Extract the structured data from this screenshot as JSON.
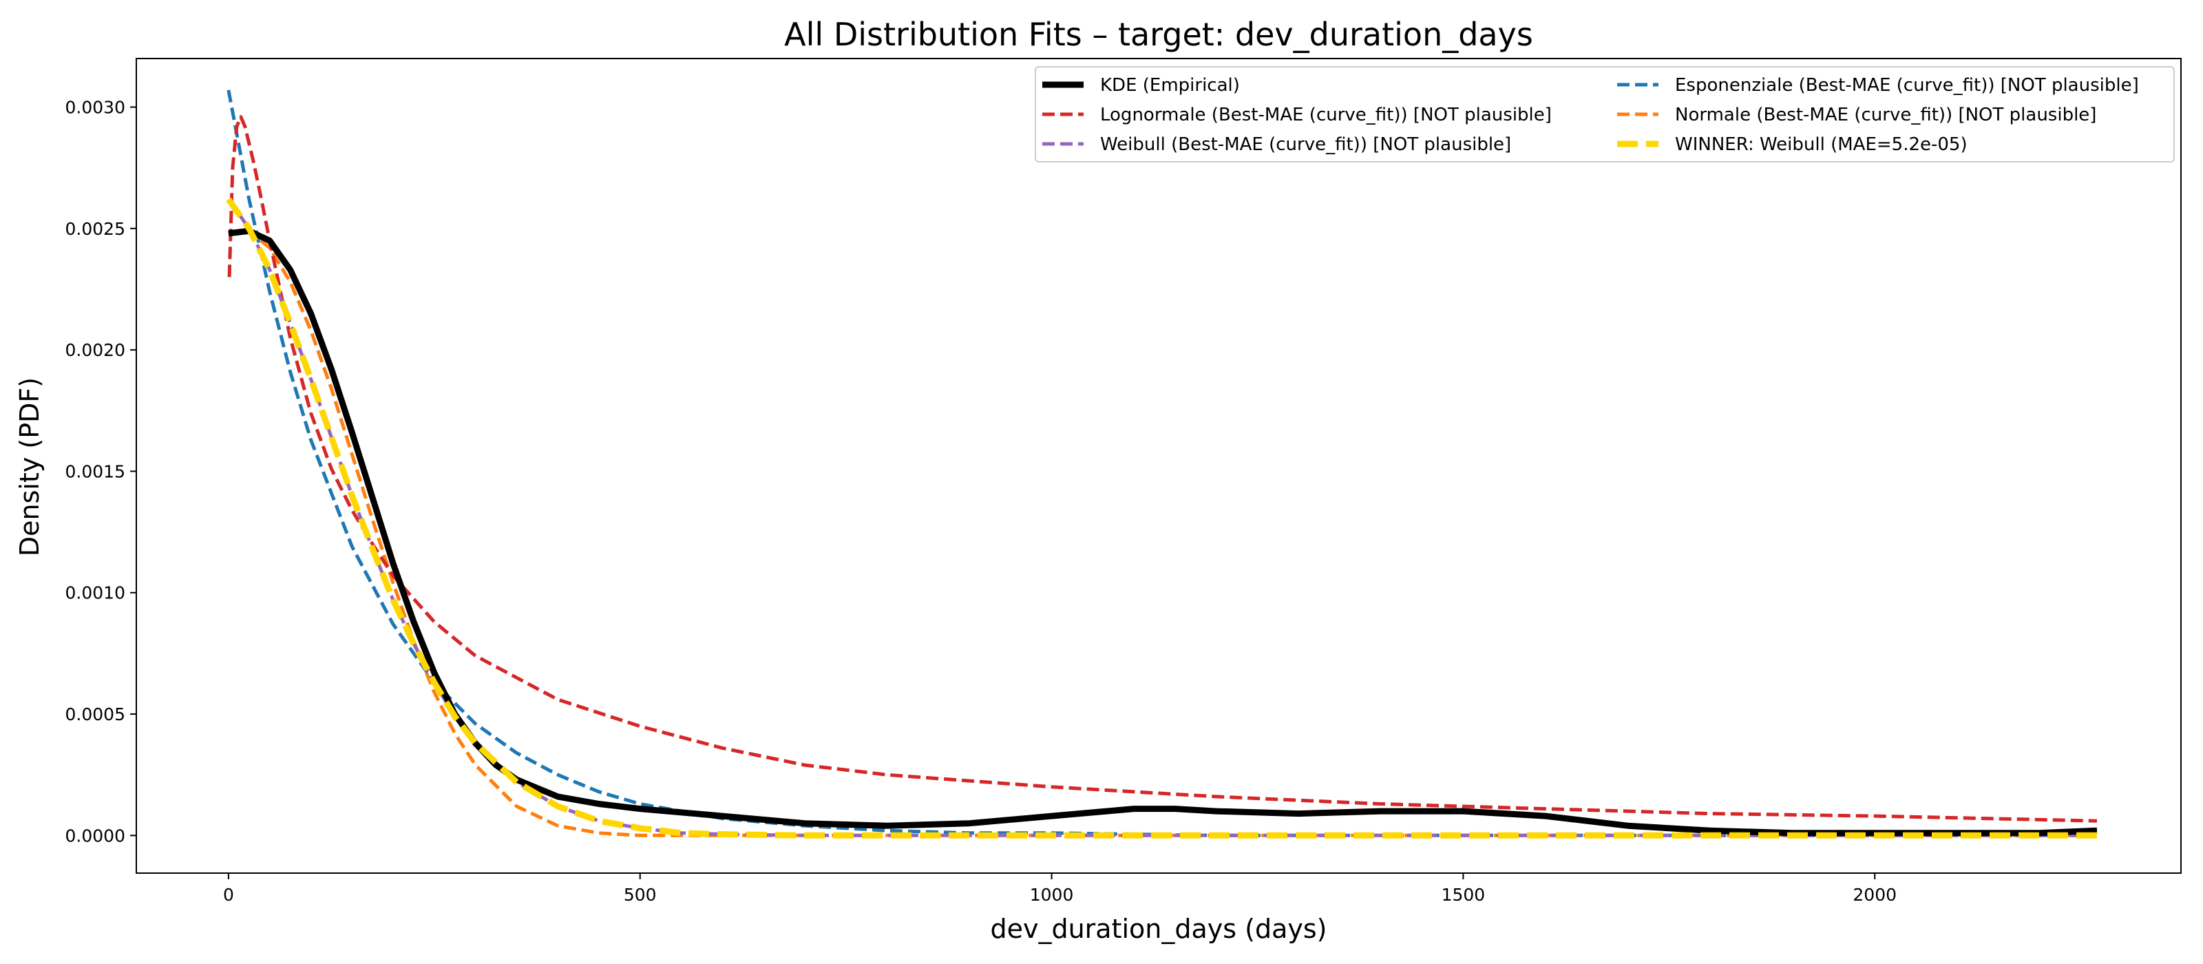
{
  "chart_data": {
    "type": "line",
    "title": "All Distribution Fits – target: dev_duration_days",
    "xlabel": "dev_duration_days (days)",
    "ylabel": "Density (PDF)",
    "xlim": [
      -112,
      2372
    ],
    "ylim": [
      -0.000155,
      0.0032
    ],
    "x_ticks": [
      0,
      500,
      1000,
      1500,
      2000
    ],
    "x_tick_labels": [
      "0",
      "500",
      "1000",
      "1500",
      "2000"
    ],
    "y_ticks": [
      0.0,
      0.0005,
      0.001,
      0.0015,
      0.002,
      0.0025,
      0.003
    ],
    "y_tick_labels": [
      "0.0000",
      "0.0005",
      "0.0010",
      "0.0015",
      "0.0020",
      "0.0025",
      "0.0030"
    ],
    "grid": false,
    "legend_position": "top-right",
    "legend_columns": 2,
    "series": [
      {
        "name": "KDE (Empirical)",
        "color": "#000000",
        "style": "solid",
        "width": "thick",
        "x": [
          0,
          25,
          50,
          75,
          100,
          125,
          150,
          175,
          200,
          225,
          250,
          275,
          300,
          325,
          350,
          400,
          450,
          500,
          600,
          700,
          800,
          900,
          1000,
          1100,
          1150,
          1200,
          1300,
          1400,
          1500,
          1600,
          1700,
          1800,
          1900,
          2000,
          2100,
          2200,
          2270
        ],
        "y": [
          0.00248,
          0.00249,
          0.00245,
          0.00233,
          0.00215,
          0.00192,
          0.00166,
          0.00139,
          0.00112,
          0.00088,
          0.00067,
          0.0005,
          0.00038,
          0.00029,
          0.00023,
          0.00016,
          0.00013,
          0.00011,
          8e-05,
          5e-05,
          4e-05,
          5e-05,
          8e-05,
          0.00011,
          0.00011,
          0.0001,
          9e-05,
          0.0001,
          0.0001,
          8e-05,
          4e-05,
          2e-05,
          1e-05,
          1e-05,
          1e-05,
          1e-05,
          2e-05
        ]
      },
      {
        "name": "Lognormale (Best-MAE (curve_fit)) [NOT plausible]",
        "color": "#d62728",
        "style": "dashed",
        "width": "normal",
        "x": [
          1,
          5,
          10,
          15,
          20,
          30,
          40,
          50,
          75,
          100,
          125,
          150,
          175,
          200,
          250,
          300,
          400,
          500,
          600,
          700,
          800,
          1000,
          1200,
          1400,
          1600,
          1800,
          2000,
          2270
        ],
        "y": [
          0.0023,
          0.00275,
          0.00292,
          0.00296,
          0.00292,
          0.00278,
          0.00262,
          0.00245,
          0.00205,
          0.00174,
          0.00151,
          0.00134,
          0.0012,
          0.00107,
          0.00088,
          0.00074,
          0.00056,
          0.00045,
          0.00036,
          0.00029,
          0.00025,
          0.0002,
          0.00016,
          0.00013,
          0.00011,
          9e-05,
          8e-05,
          6e-05
        ]
      },
      {
        "name": "Weibull (Best-MAE (curve_fit)) [NOT plausible]",
        "color": "#9467bd",
        "style": "dashed",
        "width": "normal",
        "x": [
          0,
          25,
          50,
          75,
          100,
          125,
          150,
          175,
          200,
          225,
          250,
          275,
          300,
          350,
          400,
          450,
          500,
          550,
          600,
          700,
          800,
          1000,
          1500,
          2000,
          2270
        ],
        "y": [
          0.00262,
          0.0025,
          0.00233,
          0.00211,
          0.00188,
          0.00164,
          0.0014,
          0.00118,
          0.00097,
          0.00079,
          0.00063,
          0.00049,
          0.00038,
          0.00022,
          0.00012,
          6e-05,
          3e-05,
          1e-05,
          5e-06,
          0.0,
          0.0,
          0.0,
          0.0,
          0.0,
          0.0
        ]
      },
      {
        "name": "Esponenziale (Best-MAE (curve_fit)) [NOT plausible]",
        "color": "#1f77b4",
        "style": "dashed",
        "width": "normal",
        "x": [
          0,
          25,
          50,
          75,
          100,
          150,
          200,
          250,
          300,
          350,
          400,
          450,
          500,
          600,
          700,
          800,
          900,
          1000,
          1200,
          1500,
          2000,
          2270
        ],
        "y": [
          0.00307,
          0.00262,
          0.00224,
          0.00191,
          0.00163,
          0.00119,
          0.00087,
          0.00063,
          0.00046,
          0.00034,
          0.00025,
          0.00018,
          0.00013,
          7e-05,
          4e-05,
          2e-05,
          1e-05,
          1e-05,
          0.0,
          0.0,
          0.0,
          0.0
        ]
      },
      {
        "name": "Normale (Best-MAE (curve_fit)) [NOT plausible]",
        "color": "#ff7f0e",
        "style": "dashed",
        "width": "normal",
        "x": [
          0,
          25,
          50,
          75,
          100,
          125,
          150,
          175,
          200,
          225,
          250,
          275,
          300,
          350,
          400,
          450,
          500,
          550,
          600,
          700,
          1000,
          1500,
          2000,
          2270
        ],
        "y": [
          0.00248,
          0.00249,
          0.00242,
          0.00228,
          0.00208,
          0.00184,
          0.00157,
          0.0013,
          0.00104,
          0.0008,
          0.00059,
          0.00042,
          0.00029,
          0.00012,
          4e-05,
          1e-05,
          0.0,
          0.0,
          0.0,
          0.0,
          0.0,
          0.0,
          0.0,
          0.0
        ]
      },
      {
        "name": "WINNER: Weibull (MAE=5.2e-05)",
        "color": "#ffd700",
        "style": "dashed",
        "width": "thick",
        "x": [
          0,
          25,
          50,
          75,
          100,
          125,
          150,
          175,
          200,
          225,
          250,
          275,
          300,
          350,
          400,
          450,
          500,
          550,
          600,
          700,
          800,
          1000,
          1500,
          2000,
          2270
        ],
        "y": [
          0.00262,
          0.0025,
          0.00233,
          0.00211,
          0.00188,
          0.00164,
          0.0014,
          0.00118,
          0.00097,
          0.00079,
          0.00063,
          0.00049,
          0.00038,
          0.00022,
          0.00012,
          6e-05,
          3e-05,
          1e-05,
          5e-06,
          0.0,
          0.0,
          0.0,
          0.0,
          0.0,
          0.0
        ]
      }
    ],
    "legend_order": [
      0,
      1,
      2,
      3,
      4,
      5
    ]
  }
}
